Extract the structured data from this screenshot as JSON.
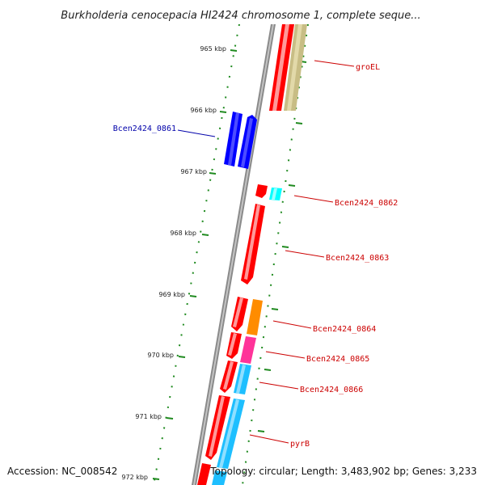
{
  "map": {
    "title": "Burkholderia cenocepacia HI2424 chromosome 1, complete seque...",
    "accession": "Accession: NC_008542",
    "summary": "Topology: circular; Length: 3,483,902 bp; Genes: 3,233"
  },
  "ruler": {
    "ticks": [
      {
        "label": "965 kbp"
      },
      {
        "label": "966 kbp"
      },
      {
        "label": "967 kbp"
      },
      {
        "label": "968 kbp"
      },
      {
        "label": "969 kbp"
      },
      {
        "label": "970 kbp"
      },
      {
        "label": "971 kbp"
      },
      {
        "label": "972 kbp"
      }
    ]
  },
  "gene_labels": [
    {
      "name": "groEL",
      "color": "#cc0000"
    },
    {
      "name": "Bcen2424_0861",
      "color": "#0000aa"
    },
    {
      "name": "Bcen2424_0862",
      "color": "#cc0000"
    },
    {
      "name": "Bcen2424_0863",
      "color": "#cc0000"
    },
    {
      "name": "Bcen2424_0864",
      "color": "#cc0000"
    },
    {
      "name": "Bcen2424_0865",
      "color": "#cc0000"
    },
    {
      "name": "Bcen2424_0866",
      "color": "#cc0000"
    },
    {
      "name": "pyrB",
      "color": "#cc0000"
    }
  ],
  "colors": {
    "cds": "#ff0000",
    "reverse_gene": "#0000ff",
    "groEL_track": "#c8bd85",
    "cyan": "#00ffff",
    "orange": "#ff8c00",
    "magenta": "#ff3399",
    "skyblue": "#1ebfff",
    "backbone": "#888888",
    "ruler": "#1f8a1f"
  }
}
